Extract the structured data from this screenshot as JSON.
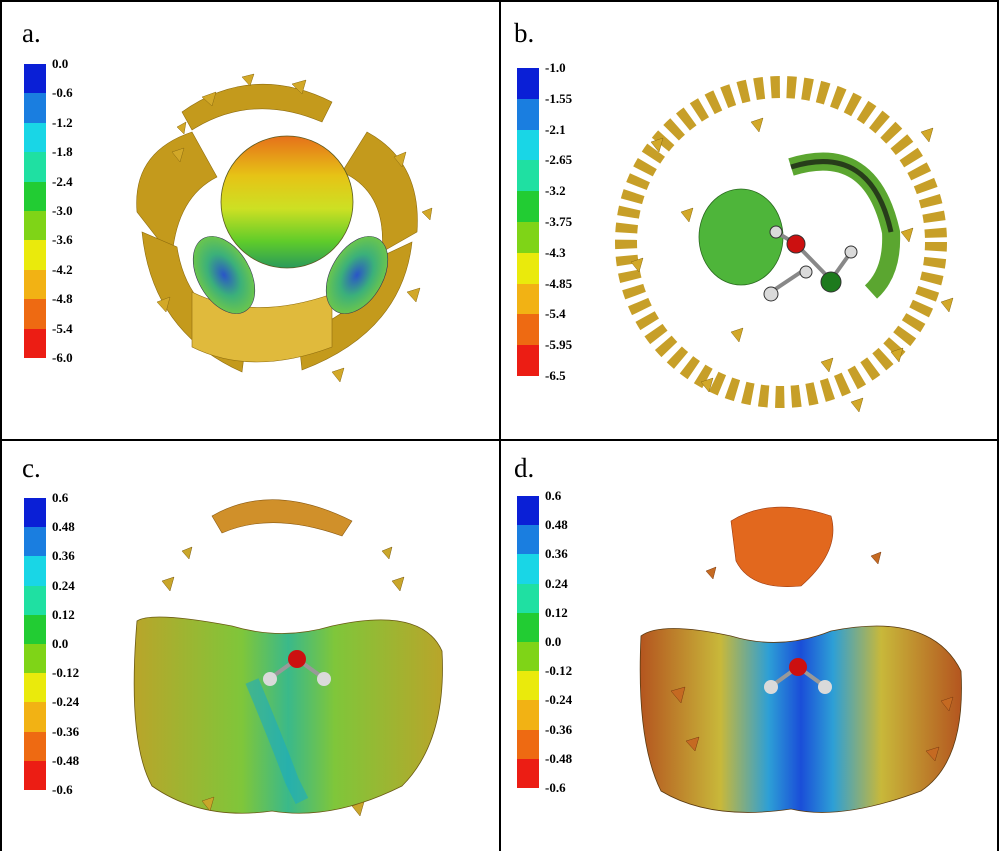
{
  "figure": {
    "panels": [
      {
        "id": "a",
        "label": "a.",
        "scale_labels": [
          "0.0",
          "-0.6",
          "-1.2",
          "-1.8",
          "-2.4",
          "-3.0",
          "-3.6",
          "-4.2",
          "-4.8",
          "-5.4",
          "-6.0"
        ]
      },
      {
        "id": "b",
        "label": "b.",
        "scale_labels": [
          "-1.0",
          "-1.55",
          "-2.1",
          "-2.65",
          "-3.2",
          "-3.75",
          "-4.3",
          "-4.85",
          "-5.4",
          "-5.95",
          "-6.5"
        ]
      },
      {
        "id": "c",
        "label": "c.",
        "scale_labels": [
          "0.6",
          "0.48",
          "0.36",
          "0.24",
          "0.12",
          "0.0",
          "-0.12",
          "-0.24",
          "-0.36",
          "-0.48",
          "-0.6"
        ]
      },
      {
        "id": "d",
        "label": "d.",
        "scale_labels": [
          "0.6",
          "0.48",
          "0.36",
          "0.24",
          "0.12",
          "0.0",
          "-0.12",
          "-0.24",
          "-0.36",
          "-0.48",
          "-0.6"
        ]
      }
    ],
    "colors": {
      "scale": [
        "#0a1fd6",
        "#1a7ee0",
        "#19d6e6",
        "#1fe0a2",
        "#22cc33",
        "#7fd417",
        "#eaea0c",
        "#f2b214",
        "#ee6a12",
        "#ec1d14"
      ],
      "surface_gold": "#c49a1c",
      "surface_gold_light": "#e3c04a",
      "oxygen": "#cc1010",
      "hydrogen": "#d8d8d8",
      "chlorine": "#1d7a1d"
    }
  }
}
